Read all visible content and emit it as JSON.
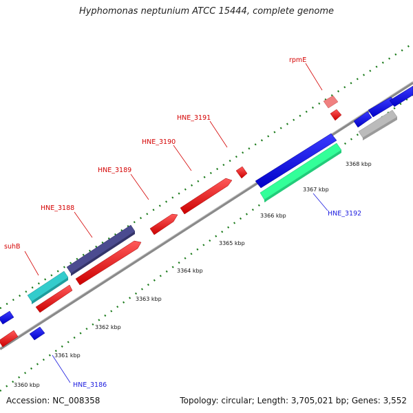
{
  "title": "Hyphomonas neptunium ATCC 15444, complete genome",
  "footer": {
    "accession": "Accession: NC_008358",
    "topology": "Topology: circular; Length: 3,705,021 bp; Genes: 3,552"
  },
  "ticks": [
    {
      "label": "3360 kbp"
    },
    {
      "label": "3361 kbp"
    },
    {
      "label": "3362 kbp"
    },
    {
      "label": "3363 kbp"
    },
    {
      "label": "3364 kbp"
    },
    {
      "label": "3365 kbp"
    },
    {
      "label": "3366 kbp"
    },
    {
      "label": "3367 kbp"
    },
    {
      "label": "3368 kbp"
    }
  ],
  "gene_labels": [
    {
      "name": "suhB",
      "strand": "forward",
      "color": "#d40000"
    },
    {
      "name": "HNE_3188",
      "strand": "forward",
      "color": "#d40000"
    },
    {
      "name": "HNE_3189",
      "strand": "forward",
      "color": "#d40000"
    },
    {
      "name": "HNE_3190",
      "strand": "forward",
      "color": "#d40000"
    },
    {
      "name": "HNE_3191",
      "strand": "forward",
      "color": "#d40000"
    },
    {
      "name": "rpmE",
      "strand": "forward",
      "color": "#d40000"
    },
    {
      "name": "HNE_3186",
      "strand": "reverse",
      "color": "#1a1adf"
    },
    {
      "name": "HNE_3192",
      "strand": "reverse",
      "color": "#1a1adf"
    }
  ],
  "colors": {
    "backbone": "#999999",
    "tick_green": "#1a7a1a",
    "forward_gene": "#ff0000",
    "reverse_gene": "#0000ff",
    "light_red_gene": "#f08080",
    "cyan_feature": "#33cccc",
    "purple_feature": "#4b4b90",
    "mint_feature": "#33ff99",
    "grey_feature": "#bbbbbb"
  }
}
